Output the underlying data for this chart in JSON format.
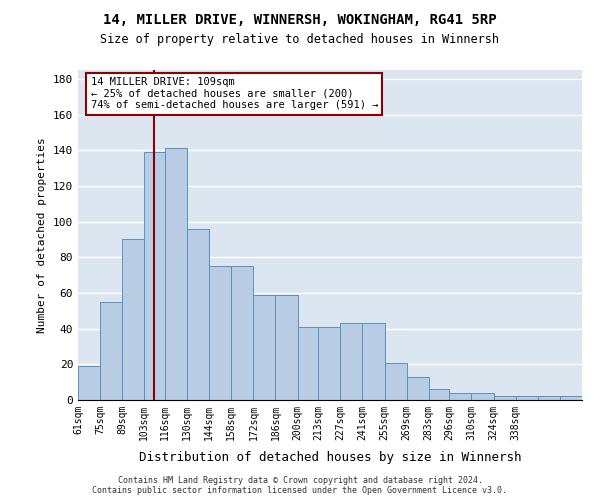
{
  "title1": "14, MILLER DRIVE, WINNERSH, WOKINGHAM, RG41 5RP",
  "title2": "Size of property relative to detached houses in Winnersh",
  "xlabel": "Distribution of detached houses by size in Winnersh",
  "ylabel": "Number of detached properties",
  "bar_values": [
    19,
    55,
    90,
    139,
    141,
    96,
    75,
    75,
    59,
    59,
    41,
    41,
    43,
    43,
    21,
    13,
    6,
    4,
    4,
    2,
    2,
    2,
    2
  ],
  "bin_edges": [
    61,
    75,
    89,
    103,
    116,
    130,
    144,
    158,
    172,
    186,
    200,
    213,
    227,
    241,
    255,
    269,
    283,
    296,
    310,
    324,
    338,
    352,
    366,
    380
  ],
  "x_tick_labels": [
    "61sqm",
    "75sqm",
    "89sqm",
    "103sqm",
    "116sqm",
    "130sqm",
    "144sqm",
    "158sqm",
    "172sqm",
    "186sqm",
    "200sqm",
    "213sqm",
    "227sqm",
    "241sqm",
    "255sqm",
    "269sqm",
    "283sqm",
    "296sqm",
    "310sqm",
    "324sqm",
    "338sqm"
  ],
  "bar_color": "#b8cce4",
  "bar_edge_color": "#5a8fc0",
  "grid_color": "#ffffff",
  "bg_color": "#dce6f1",
  "vline_x": 109,
  "vline_color": "#8b0000",
  "annotation_text": "14 MILLER DRIVE: 109sqm\n← 25% of detached houses are smaller (200)\n74% of semi-detached houses are larger (591) →",
  "annotation_box_color": "#8b0000",
  "footer_text": "Contains HM Land Registry data © Crown copyright and database right 2024.\nContains public sector information licensed under the Open Government Licence v3.0.",
  "ylim": [
    0,
    185
  ],
  "yticks": [
    0,
    20,
    40,
    60,
    80,
    100,
    120,
    140,
    160,
    180
  ]
}
